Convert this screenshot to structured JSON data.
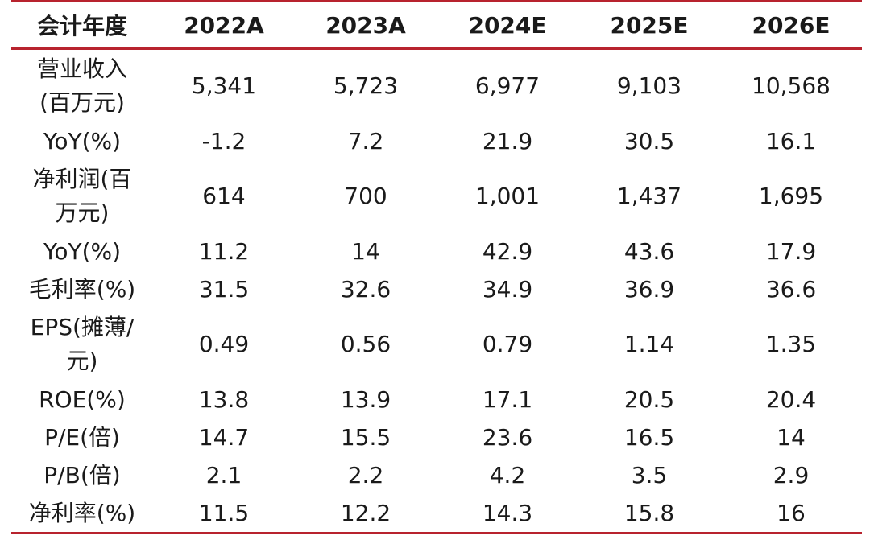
{
  "table": {
    "headers": [
      "会计年度",
      "2022A",
      "2023A",
      "2024E",
      "2025E",
      "2026E"
    ],
    "rows": [
      {
        "label": "营业收入(百万元)",
        "values": [
          "5,341",
          "5,723",
          "6,977",
          "9,103",
          "10,568"
        ]
      },
      {
        "label": "YoY(%)",
        "values": [
          "-1.2",
          "7.2",
          "21.9",
          "30.5",
          "16.1"
        ]
      },
      {
        "label": "净利润(百万元)",
        "values": [
          "614",
          "700",
          "1,001",
          "1,437",
          "1,695"
        ]
      },
      {
        "label": "YoY(%)",
        "values": [
          "11.2",
          "14",
          "42.9",
          "43.6",
          "17.9"
        ]
      },
      {
        "label": "毛利率(%)",
        "values": [
          "31.5",
          "32.6",
          "34.9",
          "36.9",
          "36.6"
        ]
      },
      {
        "label": "EPS(摊薄/元)",
        "values": [
          "0.49",
          "0.56",
          "0.79",
          "1.14",
          "1.35"
        ]
      },
      {
        "label": "ROE(%)",
        "values": [
          "13.8",
          "13.9",
          "17.1",
          "20.5",
          "20.4"
        ]
      },
      {
        "label": "P/E(倍)",
        "values": [
          "14.7",
          "15.5",
          "23.6",
          "16.5",
          "14"
        ]
      },
      {
        "label": "P/B(倍)",
        "values": [
          "2.1",
          "2.2",
          "4.2",
          "3.5",
          "2.9"
        ]
      },
      {
        "label": "净利率(%)",
        "values": [
          "11.5",
          "12.2",
          "14.3",
          "15.8",
          "16"
        ]
      }
    ]
  },
  "colors": {
    "rule": "#b8232e",
    "text": "#1a1a1a"
  }
}
